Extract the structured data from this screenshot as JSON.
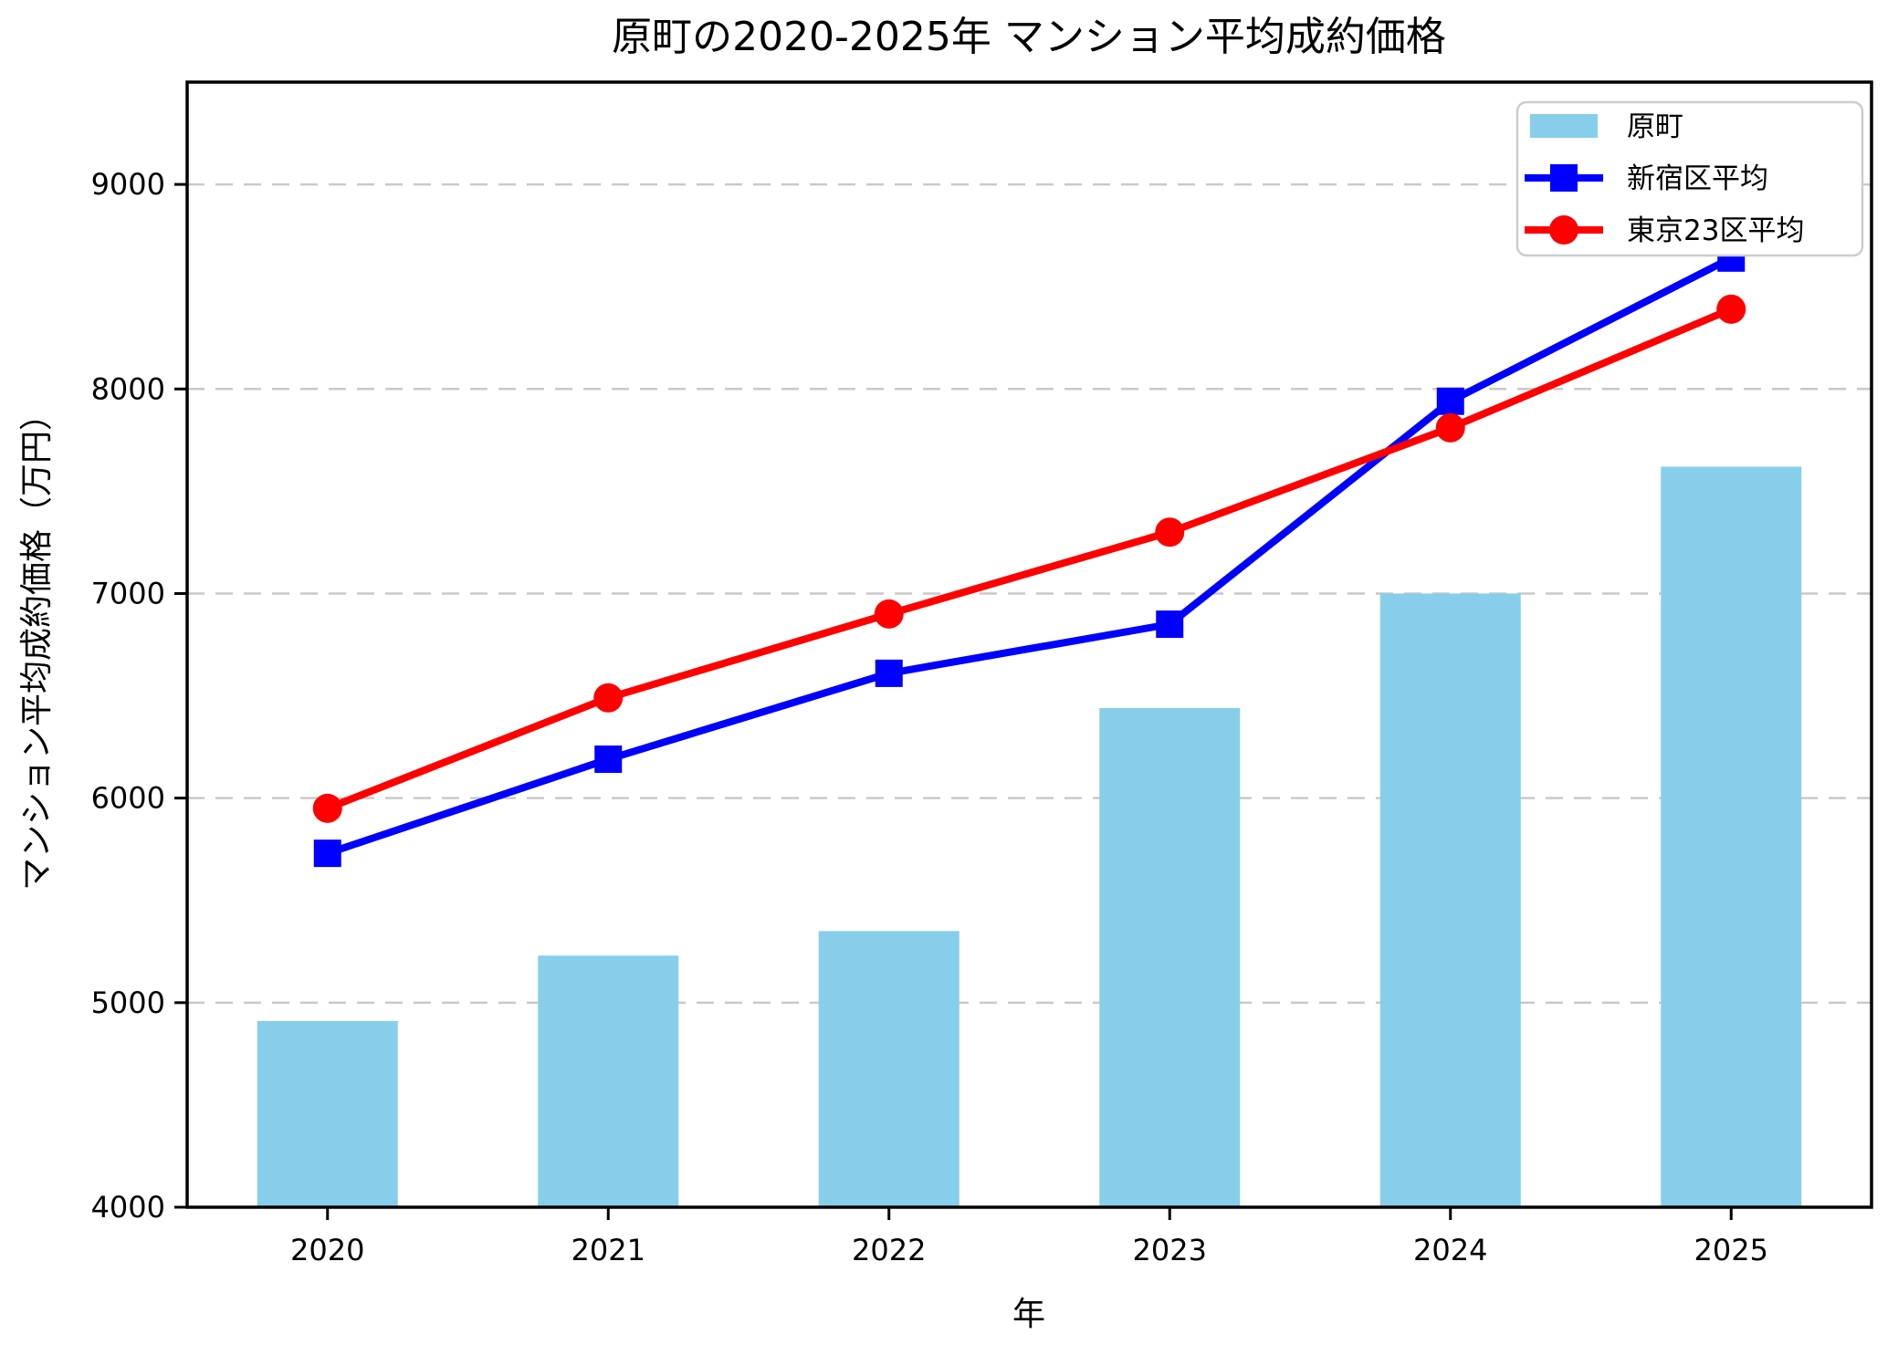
{
  "title": "原町の2020-2025年 マンション平均成約価格",
  "chart_data": {
    "type": "bar+line combo",
    "title": "原町の2020-2025年 マンション平均成約価格",
    "xlabel": "年",
    "ylabel": "マンション平均成約価格（万円）",
    "categories": [
      "2020",
      "2021",
      "2022",
      "2023",
      "2024",
      "2025"
    ],
    "series": [
      {
        "name": "原町",
        "type": "bar",
        "color": "#87CEEB",
        "values": [
          4910,
          5230,
          5350,
          6440,
          7000,
          7620
        ]
      },
      {
        "name": "新宿区平均",
        "type": "line",
        "marker": "square",
        "color": "#0000FF",
        "values": [
          5730,
          6190,
          6610,
          6850,
          7940,
          8640
        ]
      },
      {
        "name": "東京23区平均",
        "type": "line",
        "marker": "circle",
        "color": "#FF0000",
        "values": [
          5950,
          6490,
          6900,
          7300,
          7810,
          8390
        ]
      }
    ],
    "ylim": [
      4000,
      9500
    ],
    "yticks": [
      4000,
      5000,
      6000,
      7000,
      8000,
      9000
    ],
    "grid": "horizontal dashed",
    "grid_color": "#c9c9c9",
    "legend_position": "upper right",
    "unit": "万円"
  }
}
